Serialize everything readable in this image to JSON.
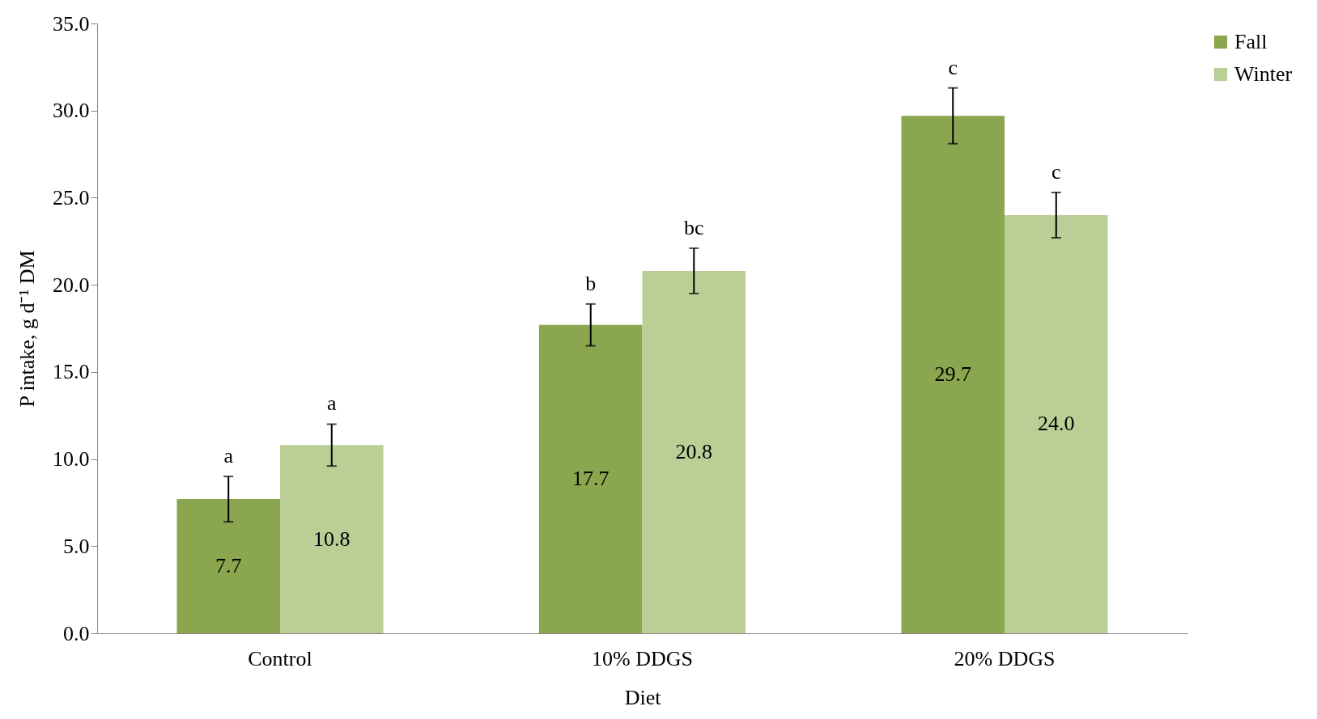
{
  "chart_data": {
    "type": "bar",
    "xlabel": "Diet",
    "ylabel": "P intake, g d⁻¹ DM",
    "categories": [
      "Control",
      "10% DDGS",
      "20% DDGS"
    ],
    "series": [
      {
        "name": "Fall",
        "color": "#8aa64e",
        "values": [
          7.7,
          17.7,
          29.7
        ],
        "errors": [
          1.3,
          1.2,
          1.6
        ],
        "value_labels": [
          "7.7",
          "17.7",
          "29.7"
        ]
      },
      {
        "name": "Winter",
        "color": "#b9cf95",
        "values": [
          10.8,
          20.8,
          24.0
        ],
        "errors": [
          1.2,
          1.3,
          1.3
        ],
        "value_labels": [
          "10.8",
          "20.8",
          "24.0"
        ]
      }
    ],
    "ylim": [
      0,
      35
    ],
    "yticks": [
      {
        "value": 0,
        "label": "0.0"
      },
      {
        "value": 5,
        "label": "5.0"
      },
      {
        "value": 10,
        "label": "10.0"
      },
      {
        "value": 15,
        "label": "15.0"
      },
      {
        "value": 20,
        "label": "20.0"
      },
      {
        "value": 25,
        "label": "25.0"
      },
      {
        "value": 30,
        "label": "30.0"
      },
      {
        "value": 35,
        "label": "35.0"
      }
    ],
    "legend": "right",
    "grid": false,
    "annotations": [
      {
        "text": "a",
        "x": "Control",
        "y": 7.7
      },
      {
        "text": "a",
        "x": "Control",
        "y": 10.8
      },
      {
        "text": "b",
        "x": "10% DDGS",
        "y": 17.7
      },
      {
        "text": "bc",
        "x": "10% DDGS",
        "y": 20.8
      },
      {
        "text": "c",
        "x": "20% DDGS",
        "y": 29.7
      },
      {
        "text": "c",
        "x": "20% DDGS",
        "y": 24.0
      }
    ]
  }
}
